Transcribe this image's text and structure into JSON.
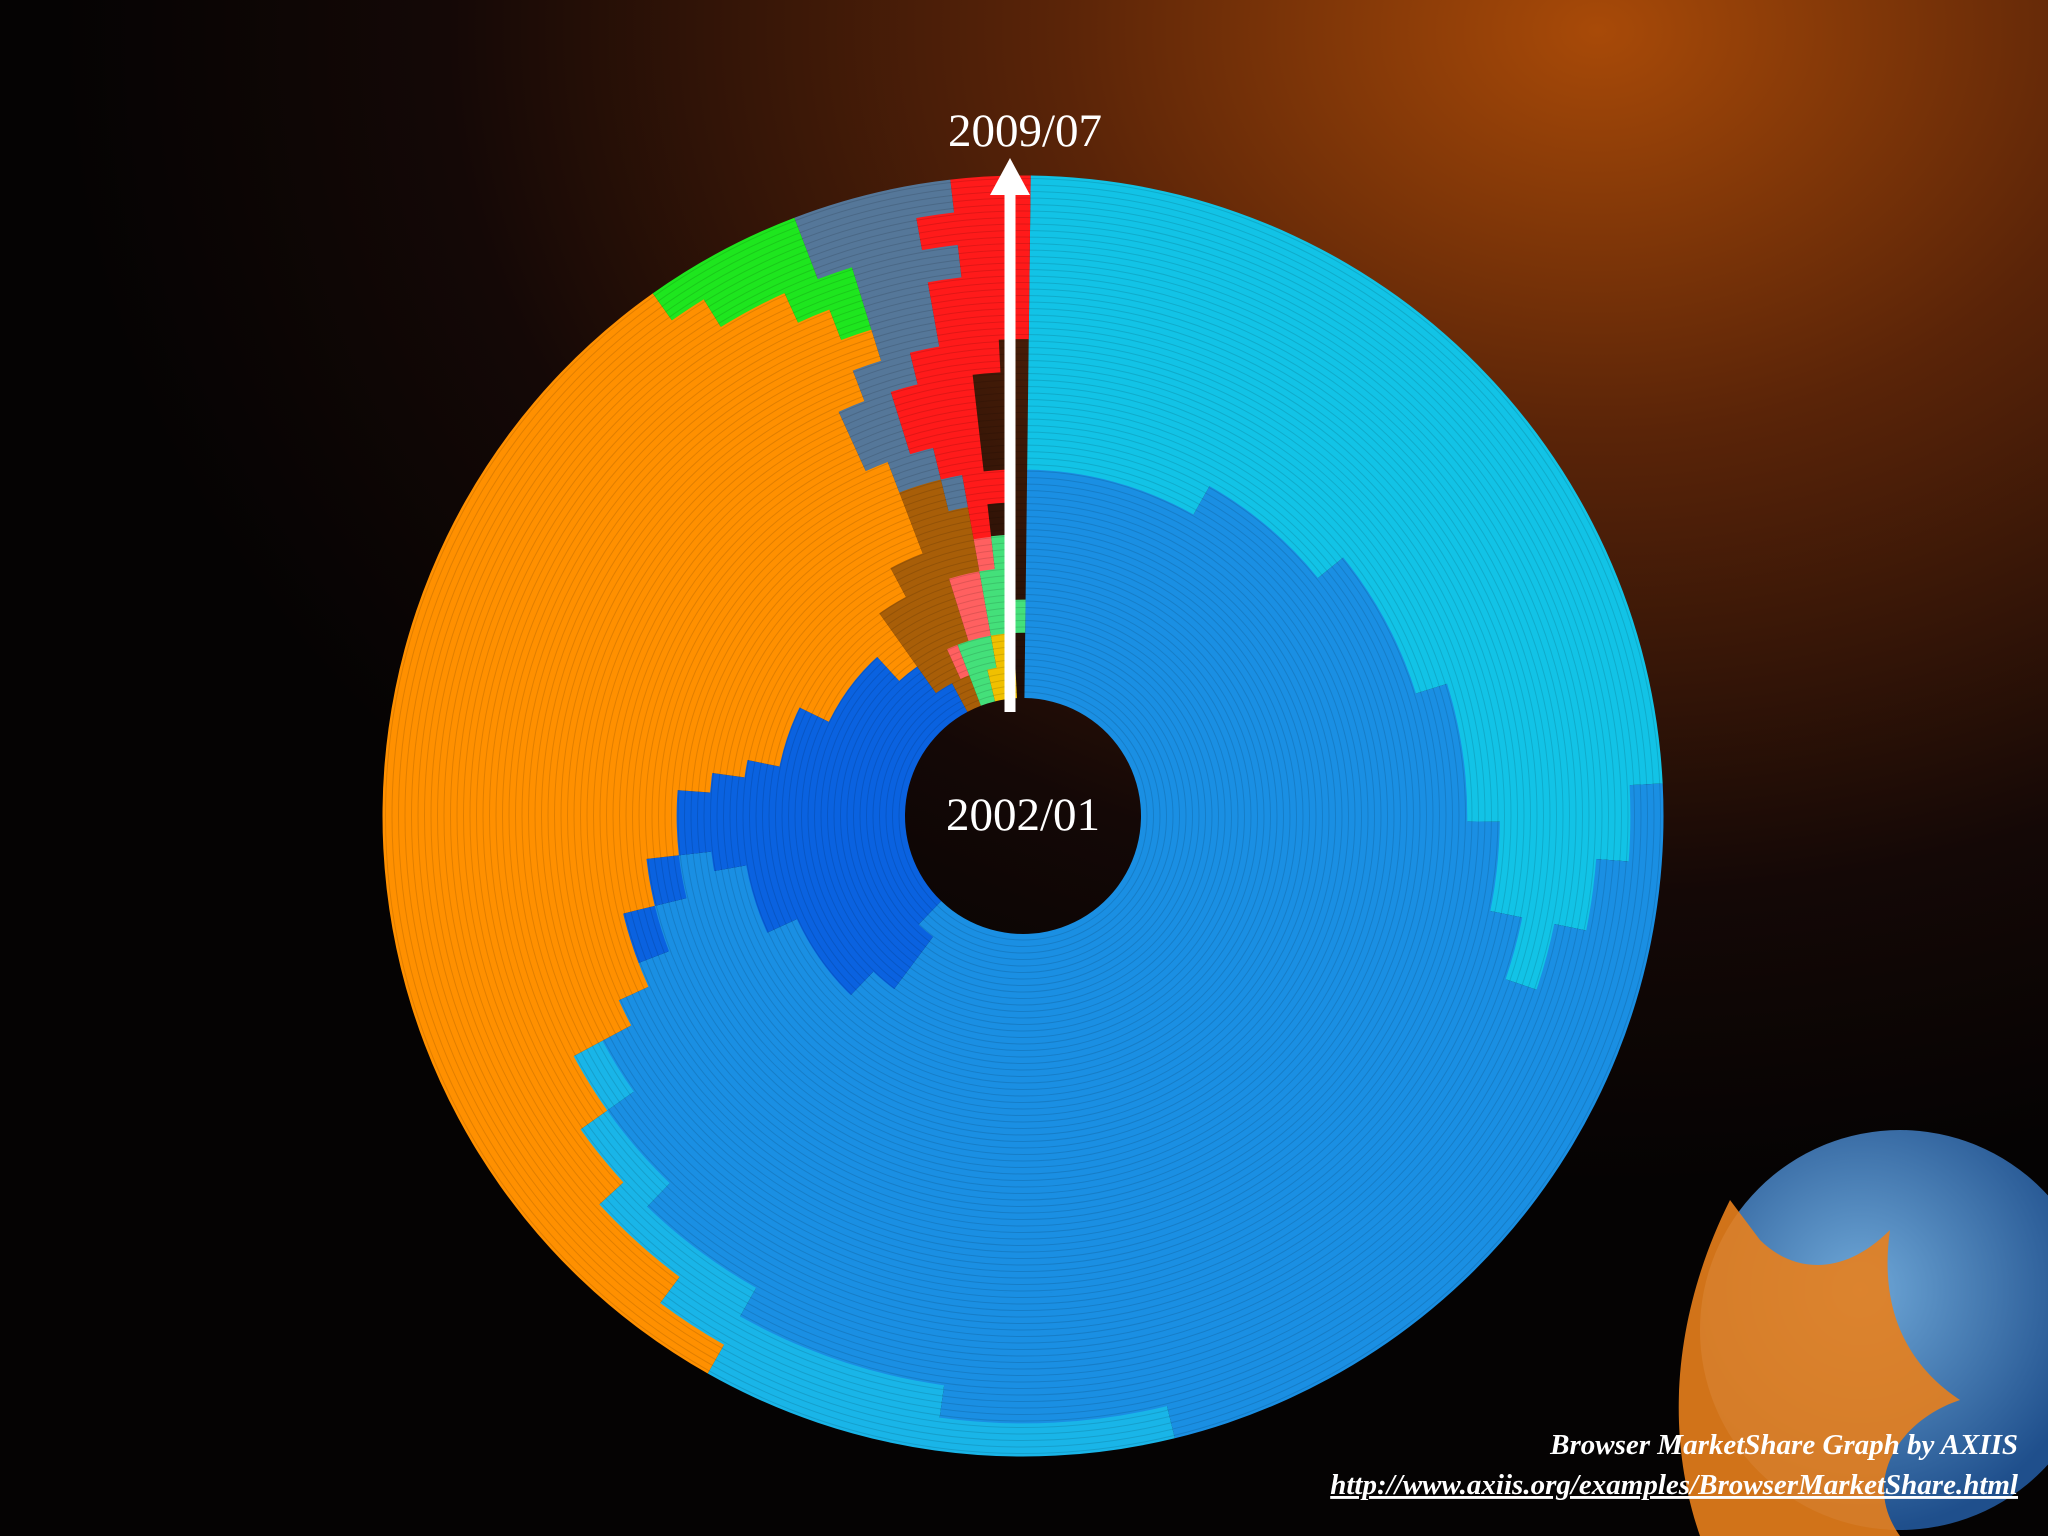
{
  "chart_data": {
    "type": "spiral",
    "categories": [
      "2002/01",
      null,
      null,
      null,
      null,
      null,
      null,
      null,
      null,
      null,
      null,
      null,
      null,
      null,
      null,
      "2009/07"
    ],
    "series": [
      {
        "color": "#12c3e6",
        "values": [
          0,
          0,
          0,
          0,
          0,
          0,
          0,
          8,
          14,
          20,
          25,
          28,
          30,
          28,
          26,
          24
        ]
      },
      {
        "color": "#1a8fe3",
        "values": [
          62,
          60,
          60,
          62,
          68,
          72,
          73,
          63,
          55,
          48,
          42,
          37,
          32,
          30,
          26,
          22
        ]
      },
      {
        "color": "#19b5e8",
        "values": [
          0,
          0,
          0,
          0,
          0,
          0,
          0,
          0,
          0,
          0,
          0,
          2,
          3,
          5,
          8,
          12
        ]
      },
      {
        "color": "#0a62e0",
        "values": [
          30,
          30,
          28,
          20,
          10,
          5,
          3,
          2,
          2,
          0,
          0,
          0,
          0,
          0,
          0,
          0
        ]
      },
      {
        "color": "#ff9000",
        "values": [
          0,
          0,
          2,
          8,
          14,
          17,
          18,
          21,
          22,
          25,
          27,
          28,
          29,
          30,
          31,
          32
        ]
      },
      {
        "color": "#a85e08",
        "values": [
          2,
          3,
          5,
          5,
          5,
          3,
          2,
          0,
          0,
          0,
          0,
          0,
          0,
          0,
          0,
          0
        ]
      },
      {
        "color": "#1ee61e",
        "values": [
          0,
          0,
          0,
          0,
          0,
          0,
          0,
          0,
          0,
          0,
          0,
          0,
          1,
          2,
          3,
          4
        ]
      },
      {
        "color": "#557799",
        "values": [
          0,
          0,
          0,
          0,
          0,
          0,
          1,
          2,
          2,
          2,
          2,
          2,
          2,
          3,
          3,
          4
        ]
      },
      {
        "color": "#ff1a1a",
        "values": [
          0,
          0,
          0,
          0,
          0,
          1,
          2,
          2,
          3,
          3,
          3,
          3,
          3,
          2,
          3,
          2
        ]
      },
      {
        "color": "#ff6060",
        "values": [
          0,
          1,
          2,
          2,
          1,
          0,
          0,
          0,
          0,
          0,
          0,
          0,
          0,
          0,
          0,
          0
        ]
      },
      {
        "color": "#44e07a",
        "values": [
          2,
          3,
          3,
          2,
          1,
          0,
          0,
          0,
          0,
          0,
          0,
          0,
          0,
          0,
          0,
          0
        ]
      },
      {
        "color": "#f0c000",
        "values": [
          3,
          2,
          0,
          0,
          0,
          0,
          0,
          0,
          0,
          0,
          0,
          0,
          0,
          0,
          0,
          0
        ]
      }
    ],
    "caption": "Browser MarketShare Graph by AXIIS",
    "source": "http://www.axiis.org/examples/BrowserMarketShare.html"
  }
}
